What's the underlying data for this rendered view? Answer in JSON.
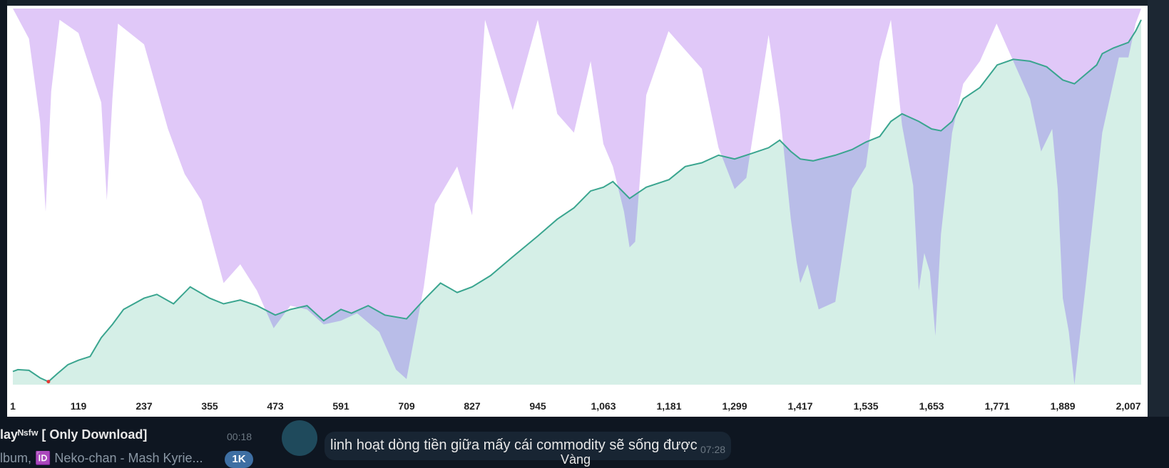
{
  "chat": {
    "left_title": "layᴺˢᶠʷ [ Only Download]",
    "left_time": "00:18",
    "left_subtitle": "lbum, 🆔 Neko-chan - Mash Kyrie...",
    "badge": "1K",
    "message_text": "linh hoạt dòng tiền giữa mấy cái commodity sẽ sống được",
    "message_time": "07:28",
    "caption": "Vàng"
  },
  "colors": {
    "equity_line": "#3aa58f",
    "equity_fill": "#d5efe7",
    "drawdown_fill": "#e0c8f8",
    "drawdown_overlap": "#b9bde8",
    "start_marker": "#e53935"
  },
  "chart_data": {
    "type": "area",
    "x_ticks": [
      "1",
      "119",
      "237",
      "355",
      "473",
      "591",
      "709",
      "827",
      "945",
      "1,063",
      "1,181",
      "1,299",
      "1,417",
      "1,535",
      "1,653",
      "1,771",
      "1,889",
      "2,007"
    ],
    "xlim": [
      1,
      2030
    ],
    "ylim": [
      0,
      100
    ],
    "grid": false,
    "legend": "none",
    "series": [
      {
        "role": "equity",
        "x": [
          1,
          10,
          30,
          50,
          65,
          80,
          100,
          119,
          140,
          160,
          180,
          200,
          237,
          260,
          290,
          320,
          355,
          380,
          410,
          440,
          473,
          500,
          530,
          560,
          591,
          610,
          640,
          670,
          709,
          740,
          770,
          800,
          827,
          860,
          900,
          945,
          980,
          1010,
          1040,
          1063,
          1080,
          1110,
          1140,
          1181,
          1210,
          1240,
          1270,
          1299,
          1330,
          1360,
          1380,
          1400,
          1417,
          1440,
          1480,
          1510,
          1535,
          1560,
          1580,
          1600,
          1630,
          1653,
          1670,
          1690,
          1710,
          1740,
          1771,
          1800,
          1830,
          1860,
          1889,
          1910,
          1930,
          1950,
          1960,
          1980,
          2007,
          2020,
          2030
        ],
        "y": [
          3.5,
          4.0,
          3.8,
          1.8,
          0.8,
          2.8,
          5.3,
          6.5,
          7.5,
          12.5,
          16.0,
          20.0,
          23.0,
          24.0,
          21.5,
          26.0,
          23.0,
          21.5,
          22.5,
          21.0,
          18.5,
          20.0,
          21.0,
          17.0,
          20.0,
          19.0,
          21.0,
          18.5,
          17.5,
          22.5,
          27.0,
          24.5,
          26.0,
          29.0,
          34.0,
          39.5,
          44.0,
          47.0,
          51.5,
          52.5,
          54.0,
          49.5,
          52.5,
          54.5,
          58.0,
          59.0,
          61.0,
          60.0,
          61.5,
          63.0,
          65.0,
          62.0,
          60.0,
          59.5,
          61.0,
          62.5,
          64.5,
          66.0,
          70.0,
          72.0,
          70.0,
          68.0,
          67.5,
          70.0,
          76.0,
          79.0,
          85.0,
          86.5,
          86.0,
          84.5,
          81.0,
          80.0,
          82.5,
          85.0,
          88.0,
          89.5,
          91.0,
          94.0,
          97.0
        ]
      },
      {
        "role": "drawdown",
        "x": [
          1,
          30,
          50,
          60,
          70,
          85,
          119,
          160,
          170,
          180,
          190,
          237,
          280,
          310,
          340,
          380,
          410,
          440,
          470,
          500,
          530,
          560,
          591,
          620,
          660,
          690,
          709,
          740,
          760,
          800,
          827,
          850,
          900,
          945,
          980,
          1010,
          1040,
          1063,
          1080,
          1100,
          1110,
          1120,
          1140,
          1180,
          1240,
          1270,
          1299,
          1320,
          1340,
          1360,
          1380,
          1400,
          1410,
          1417,
          1430,
          1450,
          1480,
          1510,
          1535,
          1560,
          1580,
          1600,
          1620,
          1630,
          1640,
          1650,
          1660,
          1670,
          1690,
          1710,
          1740,
          1770,
          1800,
          1830,
          1850,
          1870,
          1880,
          1889,
          1900,
          1910,
          1930,
          1960,
          1990,
          2007,
          2020,
          2030
        ],
        "y": [
          0,
          -8.0,
          -30.0,
          -54.0,
          -22.0,
          -3.0,
          -6.5,
          -25.0,
          -51.0,
          -24.0,
          -4.0,
          -9.5,
          -32.0,
          -44.0,
          -51.0,
          -73.0,
          -68.0,
          -75.0,
          -85.0,
          -79.0,
          -80.0,
          -84.0,
          -83.0,
          -81.0,
          -86.0,
          -96.0,
          -98.5,
          -74.0,
          -52.0,
          -42.0,
          -55.0,
          -3.0,
          -27.0,
          -3.0,
          -28.0,
          -33.0,
          -14.0,
          -36.0,
          -42.0,
          -54.0,
          -63.5,
          -62.0,
          -23.0,
          -6.0,
          -16.0,
          -37.0,
          -48.0,
          -45.0,
          -26.0,
          -7.0,
          -27.0,
          -56.0,
          -67.0,
          -73.0,
          -68.0,
          -80.0,
          -78.0,
          -48.0,
          -42.0,
          -14.0,
          -3.0,
          -31.0,
          -47.0,
          -75.0,
          -65.0,
          -70.0,
          -87.0,
          -60.0,
          -33.0,
          -20.0,
          -14.0,
          -4.0,
          -14.0,
          -24.0,
          -38.0,
          -32.0,
          -48.0,
          -77.0,
          -86.0,
          -100.0,
          -74.0,
          -33.0,
          -13.0,
          -13.0,
          -4.0,
          0
        ]
      }
    ]
  }
}
